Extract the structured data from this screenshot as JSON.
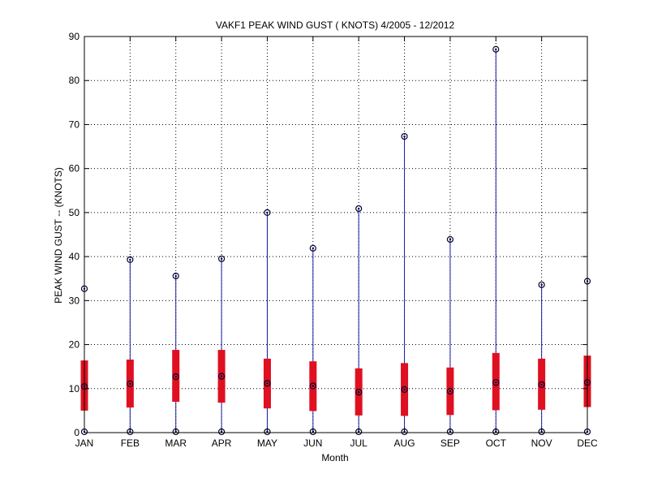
{
  "chart_data": {
    "type": "box",
    "title": "VAKF1  PEAK WIND GUST ( KNOTS) 4/2005 - 12/2012",
    "xlabel": "Month",
    "ylabel": "PEAK WIND GUST -- (KNOTS)",
    "categories": [
      "JAN",
      "FEB",
      "MAR",
      "APR",
      "MAY",
      "JUN",
      "JUL",
      "AUG",
      "SEP",
      "OCT",
      "NOV",
      "DEC"
    ],
    "ylim": [
      0,
      90
    ],
    "yticks": [
      "0",
      "10",
      "20",
      "30",
      "40",
      "50",
      "60",
      "70",
      "80",
      "90"
    ],
    "grid": true,
    "series": [
      {
        "min": [
          0.2,
          0.2,
          0.2,
          0.2,
          0.2,
          0.2,
          0.2,
          0.2,
          0.2,
          0.2,
          0.2,
          0.2
        ],
        "q1": [
          5.0,
          5.7,
          7.0,
          6.8,
          5.5,
          4.9,
          3.9,
          3.8,
          4.0,
          5.1,
          5.2,
          5.8
        ],
        "median": [
          10.5,
          11.1,
          12.7,
          12.8,
          11.2,
          10.6,
          9.2,
          9.8,
          9.4,
          11.4,
          10.9,
          11.4
        ],
        "q3": [
          16.4,
          16.6,
          18.8,
          18.8,
          16.8,
          16.2,
          14.6,
          15.8,
          14.8,
          18.1,
          16.8,
          17.5
        ],
        "max": [
          32.7,
          39.3,
          35.6,
          39.5,
          50.0,
          41.9,
          50.9,
          67.3,
          43.9,
          87.1,
          33.6,
          34.4
        ]
      }
    ],
    "colors": {
      "whisker": "#1a1aa6",
      "box": "#e01020",
      "marker": "#000033",
      "grid": "#000000"
    }
  }
}
